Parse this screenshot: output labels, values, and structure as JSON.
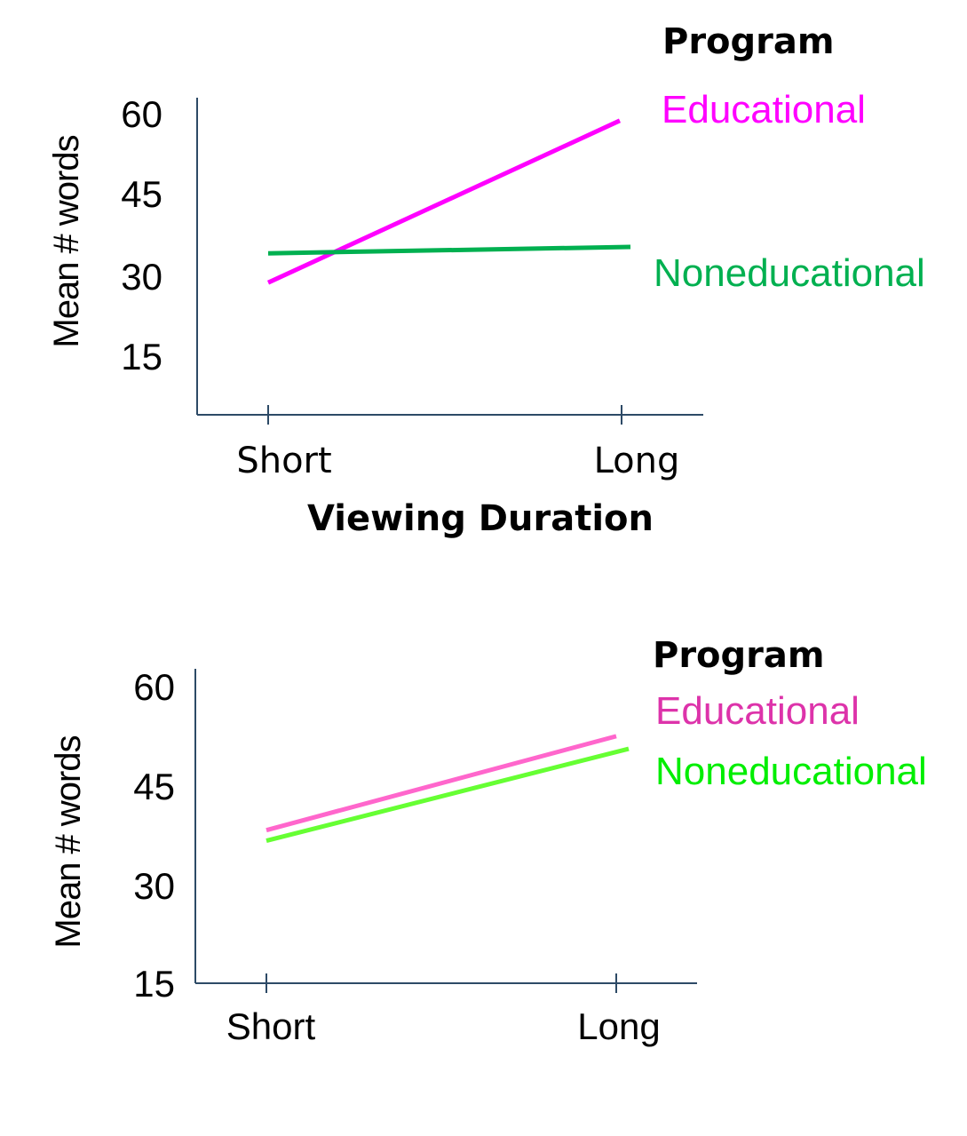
{
  "chart_data": [
    {
      "type": "line",
      "xlabel": "Viewing Duration",
      "ylabel": "Mean # words",
      "categories": [
        "Short",
        "Long"
      ],
      "yticks": [
        "60",
        "45",
        "30",
        "15"
      ],
      "ylim": [
        4,
        63
      ],
      "legend_title": "Program",
      "legend_placement": "right",
      "series": [
        {
          "name": "Educational",
          "values": [
            28.3,
            58.7
          ],
          "color": "#ff00ff",
          "label_color": "#ff00ff"
        },
        {
          "name": "Noneducational",
          "values": [
            33.8,
            35.0
          ],
          "color": "#00b050",
          "label_color": "#00b050"
        }
      ]
    },
    {
      "type": "line",
      "xlabel": "",
      "ylabel": "Mean # words",
      "categories": [
        "Short",
        "Long"
      ],
      "yticks": [
        "60",
        "45",
        "30",
        "15"
      ],
      "ylim": [
        15,
        62.5
      ],
      "legend_title": "Program",
      "legend_placement": "right",
      "series": [
        {
          "name": "Educational",
          "values": [
            38.3,
            52.5
          ],
          "color": "#ff66cc",
          "label_color": "#dd33aa"
        },
        {
          "name": "Noneducational",
          "values": [
            36.7,
            50.6
          ],
          "color": "#66ff33",
          "label_color": "#00ee00"
        }
      ]
    }
  ]
}
